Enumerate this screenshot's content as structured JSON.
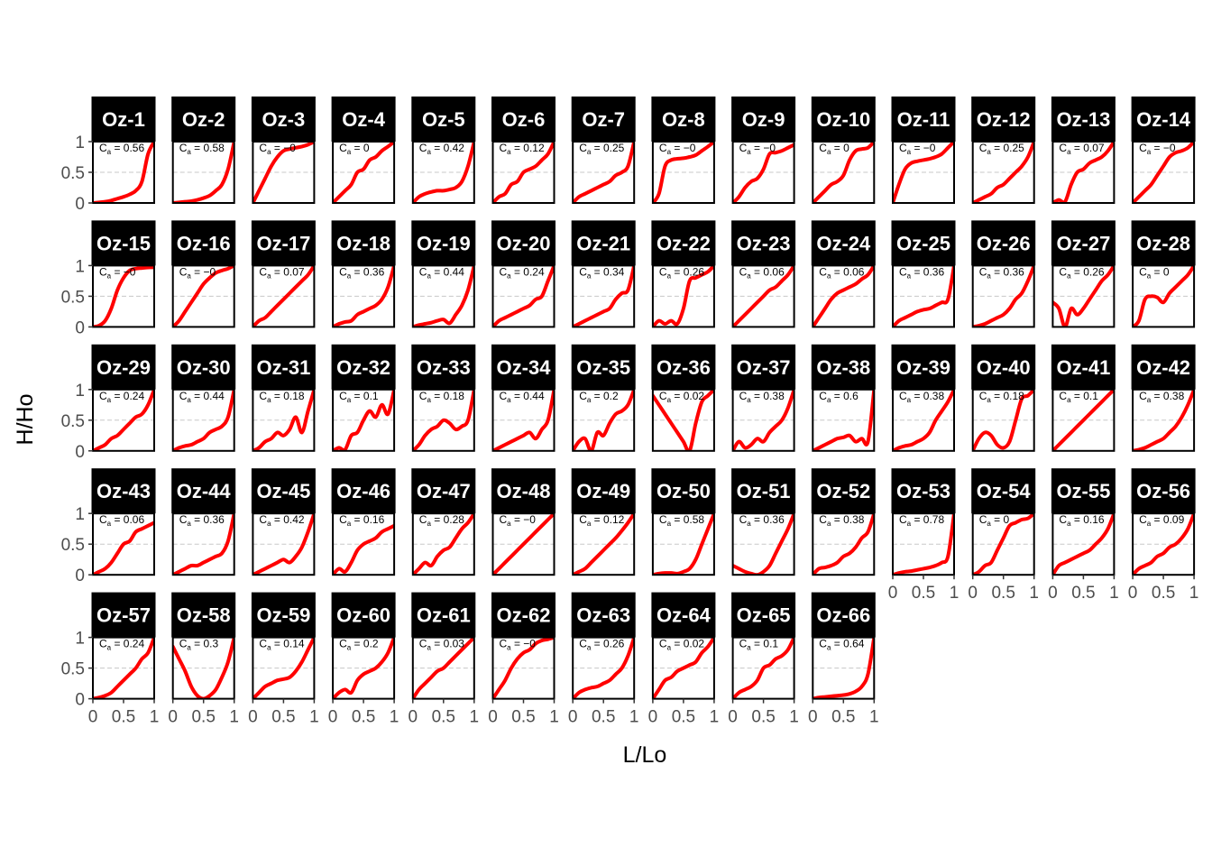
{
  "chart_data": {
    "type": "line",
    "layout": "facet_wrap",
    "ncol": 14,
    "xlabel": "L/Lo",
    "ylabel": "H/Ho",
    "xlim": [
      0,
      1
    ],
    "ylim": [
      0,
      1
    ],
    "x_ticks": [
      "0",
      "0.5",
      "1"
    ],
    "y_ticks": [
      "0",
      "0.5",
      "1"
    ],
    "reference_line": {
      "y": 0.5,
      "style": "dashed",
      "color": "#c8c8c8"
    },
    "line_color": "#ff0000",
    "strip_fill": "#000000",
    "strip_text_color": "#ffffff",
    "x": [
      0,
      0.1,
      0.2,
      0.3,
      0.4,
      0.5,
      0.6,
      0.7,
      0.8,
      0.9,
      1.0
    ],
    "panels": [
      {
        "name": "Oz-1",
        "ca": "0.56",
        "values": [
          0,
          0.01,
          0.02,
          0.04,
          0.07,
          0.1,
          0.14,
          0.2,
          0.35,
          0.8,
          1.0
        ]
      },
      {
        "name": "Oz-2",
        "ca": "0.58",
        "values": [
          0,
          0.01,
          0.02,
          0.03,
          0.05,
          0.08,
          0.12,
          0.2,
          0.3,
          0.55,
          1.0
        ]
      },
      {
        "name": "Oz-3",
        "ca": "−0",
        "values": [
          0,
          0.2,
          0.4,
          0.6,
          0.75,
          0.85,
          0.88,
          0.9,
          0.92,
          0.95,
          1.0
        ]
      },
      {
        "name": "Oz-4",
        "ca": "0",
        "values": [
          0,
          0.1,
          0.2,
          0.3,
          0.5,
          0.55,
          0.7,
          0.75,
          0.85,
          0.92,
          1.0
        ]
      },
      {
        "name": "Oz-5",
        "ca": "0.42",
        "values": [
          0,
          0.1,
          0.15,
          0.18,
          0.2,
          0.2,
          0.22,
          0.25,
          0.35,
          0.6,
          1.0
        ]
      },
      {
        "name": "Oz-6",
        "ca": "0.12",
        "values": [
          0,
          0.1,
          0.15,
          0.3,
          0.35,
          0.5,
          0.55,
          0.6,
          0.7,
          0.8,
          1.0
        ]
      },
      {
        "name": "Oz-7",
        "ca": "0.25",
        "values": [
          0,
          0.1,
          0.15,
          0.2,
          0.25,
          0.3,
          0.35,
          0.45,
          0.5,
          0.6,
          1.0
        ]
      },
      {
        "name": "Oz-8",
        "ca": "−0",
        "values": [
          0,
          0.15,
          0.6,
          0.7,
          0.72,
          0.73,
          0.75,
          0.78,
          0.85,
          0.92,
          1.0
        ]
      },
      {
        "name": "Oz-9",
        "ca": "−0",
        "values": [
          0,
          0.1,
          0.25,
          0.35,
          0.4,
          0.55,
          0.8,
          0.82,
          0.85,
          0.9,
          0.95
        ]
      },
      {
        "name": "Oz-10",
        "ca": "0",
        "values": [
          0,
          0.1,
          0.2,
          0.3,
          0.35,
          0.45,
          0.7,
          0.85,
          0.88,
          0.9,
          1.0
        ]
      },
      {
        "name": "Oz-11",
        "ca": "−0",
        "values": [
          0,
          0.3,
          0.55,
          0.65,
          0.68,
          0.7,
          0.72,
          0.75,
          0.8,
          0.9,
          1.0
        ]
      },
      {
        "name": "Oz-12",
        "ca": "0.25",
        "values": [
          0,
          0.05,
          0.1,
          0.15,
          0.25,
          0.3,
          0.4,
          0.5,
          0.6,
          0.75,
          1.0
        ]
      },
      {
        "name": "Oz-13",
        "ca": "0.07",
        "values": [
          0,
          0.05,
          0.02,
          0.3,
          0.5,
          0.55,
          0.65,
          0.7,
          0.75,
          0.85,
          1.0
        ]
      },
      {
        "name": "Oz-14",
        "ca": "−0",
        "values": [
          0,
          0.1,
          0.2,
          0.3,
          0.45,
          0.6,
          0.75,
          0.82,
          0.85,
          0.9,
          1.0
        ]
      },
      {
        "name": "Oz-15",
        "ca": "−0",
        "values": [
          0,
          0.02,
          0.1,
          0.3,
          0.6,
          0.8,
          0.92,
          0.95,
          0.96,
          0.97,
          0.97
        ]
      },
      {
        "name": "Oz-16",
        "ca": "−0",
        "values": [
          0,
          0.1,
          0.25,
          0.4,
          0.55,
          0.7,
          0.8,
          0.88,
          0.92,
          0.95,
          1.0
        ]
      },
      {
        "name": "Oz-17",
        "ca": "0.07",
        "values": [
          0,
          0.1,
          0.15,
          0.25,
          0.35,
          0.45,
          0.55,
          0.65,
          0.75,
          0.85,
          1.0
        ]
      },
      {
        "name": "Oz-18",
        "ca": "0.36",
        "values": [
          0,
          0.05,
          0.08,
          0.1,
          0.2,
          0.25,
          0.3,
          0.35,
          0.45,
          0.65,
          1.0
        ]
      },
      {
        "name": "Oz-19",
        "ca": "0.44",
        "values": [
          0,
          0.03,
          0.05,
          0.07,
          0.1,
          0.12,
          0.06,
          0.2,
          0.35,
          0.6,
          1.0
        ]
      },
      {
        "name": "Oz-20",
        "ca": "0.24",
        "values": [
          0,
          0.1,
          0.15,
          0.2,
          0.25,
          0.3,
          0.35,
          0.45,
          0.5,
          0.75,
          1.0
        ]
      },
      {
        "name": "Oz-21",
        "ca": "0.34",
        "values": [
          0,
          0.05,
          0.1,
          0.15,
          0.2,
          0.25,
          0.3,
          0.45,
          0.55,
          0.6,
          1.0
        ]
      },
      {
        "name": "Oz-22",
        "ca": "0.26",
        "values": [
          0,
          0.1,
          0.05,
          0.1,
          0.05,
          0.3,
          0.75,
          0.8,
          0.85,
          0.9,
          1.0
        ]
      },
      {
        "name": "Oz-23",
        "ca": "0.06",
        "values": [
          0,
          0.1,
          0.2,
          0.3,
          0.4,
          0.5,
          0.6,
          0.65,
          0.75,
          0.85,
          1.0
        ]
      },
      {
        "name": "Oz-24",
        "ca": "0.06",
        "values": [
          0,
          0.15,
          0.3,
          0.45,
          0.55,
          0.6,
          0.65,
          0.7,
          0.78,
          0.85,
          1.0
        ]
      },
      {
        "name": "Oz-25",
        "ca": "0.36",
        "values": [
          0,
          0.1,
          0.15,
          0.2,
          0.25,
          0.28,
          0.3,
          0.35,
          0.4,
          0.45,
          1.0
        ]
      },
      {
        "name": "Oz-26",
        "ca": "0.36",
        "values": [
          0,
          0.02,
          0.05,
          0.1,
          0.15,
          0.2,
          0.3,
          0.45,
          0.55,
          0.75,
          1.0
        ]
      },
      {
        "name": "Oz-27",
        "ca": "0.26",
        "values": [
          0.4,
          0.3,
          0,
          0.3,
          0.2,
          0.3,
          0.45,
          0.6,
          0.75,
          0.85,
          1.0
        ]
      },
      {
        "name": "Oz-28",
        "ca": "0",
        "values": [
          0,
          0.1,
          0.45,
          0.5,
          0.48,
          0.4,
          0.55,
          0.65,
          0.75,
          0.85,
          1.0
        ]
      },
      {
        "name": "Oz-29",
        "ca": "0.24",
        "values": [
          0,
          0.05,
          0.1,
          0.2,
          0.25,
          0.35,
          0.45,
          0.55,
          0.6,
          0.75,
          1.0
        ]
      },
      {
        "name": "Oz-30",
        "ca": "0.44",
        "values": [
          0,
          0.05,
          0.08,
          0.1,
          0.15,
          0.2,
          0.3,
          0.35,
          0.4,
          0.55,
          1.0
        ]
      },
      {
        "name": "Oz-31",
        "ca": "0.18",
        "values": [
          0,
          0.05,
          0.15,
          0.2,
          0.3,
          0.25,
          0.35,
          0.55,
          0.3,
          0.65,
          1.0
        ]
      },
      {
        "name": "Oz-32",
        "ca": "0.1",
        "values": [
          0,
          0.05,
          0.02,
          0.25,
          0.3,
          0.5,
          0.65,
          0.55,
          0.75,
          0.6,
          1.0
        ]
      },
      {
        "name": "Oz-33",
        "ca": "0.18",
        "values": [
          0,
          0.1,
          0.25,
          0.35,
          0.4,
          0.5,
          0.45,
          0.35,
          0.4,
          0.5,
          1.0
        ]
      },
      {
        "name": "Oz-34",
        "ca": "0.44",
        "values": [
          0,
          0.05,
          0.1,
          0.15,
          0.2,
          0.25,
          0.3,
          0.2,
          0.35,
          0.5,
          1.0
        ]
      },
      {
        "name": "Oz-35",
        "ca": "0.2",
        "values": [
          0,
          0.15,
          0.2,
          0.0,
          0.3,
          0.25,
          0.45,
          0.6,
          0.65,
          0.75,
          1.0
        ]
      },
      {
        "name": "Oz-36",
        "ca": "0.02",
        "values": [
          0.9,
          0.75,
          0.6,
          0.45,
          0.3,
          0.15,
          0,
          0.45,
          0.8,
          0.9,
          1.0
        ]
      },
      {
        "name": "Oz-37",
        "ca": "0.38",
        "values": [
          0,
          0.15,
          0.05,
          0.1,
          0.2,
          0.15,
          0.3,
          0.4,
          0.5,
          0.7,
          1.0
        ]
      },
      {
        "name": "Oz-38",
        "ca": "0.6",
        "values": [
          0,
          0.05,
          0.1,
          0.15,
          0.2,
          0.22,
          0.25,
          0.15,
          0.2,
          0.15,
          1.0
        ]
      },
      {
        "name": "Oz-39",
        "ca": "0.38",
        "values": [
          0,
          0.05,
          0.08,
          0.1,
          0.15,
          0.2,
          0.3,
          0.5,
          0.65,
          0.8,
          1.0
        ]
      },
      {
        "name": "Oz-40",
        "ca": "0.18",
        "values": [
          0,
          0.2,
          0.3,
          0.25,
          0.1,
          0.05,
          0.15,
          0.5,
          0.85,
          0.9,
          1.0
        ]
      },
      {
        "name": "Oz-41",
        "ca": "0.1",
        "values": [
          0,
          0.1,
          0.2,
          0.3,
          0.4,
          0.5,
          0.6,
          0.7,
          0.8,
          0.9,
          1.0
        ]
      },
      {
        "name": "Oz-42",
        "ca": "0.38",
        "values": [
          0,
          0.02,
          0.05,
          0.1,
          0.15,
          0.2,
          0.3,
          0.4,
          0.55,
          0.75,
          1.0
        ]
      },
      {
        "name": "Oz-43",
        "ca": "0.06",
        "values": [
          0,
          0.05,
          0.1,
          0.2,
          0.35,
          0.5,
          0.55,
          0.7,
          0.75,
          0.8,
          0.85
        ]
      },
      {
        "name": "Oz-44",
        "ca": "0.36",
        "values": [
          0,
          0.05,
          0.1,
          0.15,
          0.15,
          0.2,
          0.25,
          0.3,
          0.35,
          0.55,
          1.0
        ]
      },
      {
        "name": "Oz-45",
        "ca": "0.42",
        "values": [
          0,
          0.05,
          0.1,
          0.15,
          0.2,
          0.25,
          0.2,
          0.3,
          0.45,
          0.7,
          1.0
        ]
      },
      {
        "name": "Oz-46",
        "ca": "0.16",
        "values": [
          0,
          0.1,
          0.05,
          0.2,
          0.4,
          0.5,
          0.55,
          0.6,
          0.7,
          0.75,
          0.8
        ]
      },
      {
        "name": "Oz-47",
        "ca": "0.28",
        "values": [
          0,
          0.1,
          0.2,
          0.15,
          0.3,
          0.4,
          0.45,
          0.6,
          0.75,
          0.85,
          1.0
        ]
      },
      {
        "name": "Oz-48",
        "ca": "−0",
        "values": [
          0,
          0.1,
          0.2,
          0.3,
          0.4,
          0.5,
          0.6,
          0.7,
          0.8,
          0.9,
          1.0
        ]
      },
      {
        "name": "Oz-49",
        "ca": "0.12",
        "values": [
          0,
          0.05,
          0.1,
          0.2,
          0.3,
          0.4,
          0.5,
          0.6,
          0.72,
          0.85,
          1.0
        ]
      },
      {
        "name": "Oz-50",
        "ca": "0.58",
        "values": [
          0,
          0.02,
          0.03,
          0.03,
          0.02,
          0.05,
          0.1,
          0.25,
          0.5,
          0.75,
          1.0
        ]
      },
      {
        "name": "Oz-51",
        "ca": "0.36",
        "values": [
          0.15,
          0.1,
          0.05,
          0.02,
          0.0,
          0.05,
          0.15,
          0.35,
          0.55,
          0.75,
          1.0
        ]
      },
      {
        "name": "Oz-52",
        "ca": "0.38",
        "values": [
          0,
          0.1,
          0.12,
          0.15,
          0.2,
          0.3,
          0.35,
          0.45,
          0.6,
          0.7,
          1.0
        ]
      },
      {
        "name": "Oz-53",
        "ca": "0.78",
        "values": [
          0,
          0.03,
          0.05,
          0.06,
          0.08,
          0.1,
          0.12,
          0.15,
          0.2,
          0.3,
          1.0
        ]
      },
      {
        "name": "Oz-54",
        "ca": "0",
        "values": [
          0,
          0.05,
          0.15,
          0.2,
          0.4,
          0.6,
          0.8,
          0.85,
          0.9,
          0.92,
          1.0
        ]
      },
      {
        "name": "Oz-55",
        "ca": "0.16",
        "values": [
          0,
          0.15,
          0.2,
          0.25,
          0.3,
          0.35,
          0.4,
          0.5,
          0.6,
          0.75,
          1.0
        ]
      },
      {
        "name": "Oz-56",
        "ca": "0.09",
        "values": [
          0,
          0.1,
          0.15,
          0.2,
          0.3,
          0.35,
          0.45,
          0.5,
          0.6,
          0.75,
          1.0
        ]
      },
      {
        "name": "Oz-57",
        "ca": "0.24",
        "values": [
          0,
          0.02,
          0.05,
          0.1,
          0.2,
          0.3,
          0.4,
          0.5,
          0.65,
          0.75,
          1.0
        ]
      },
      {
        "name": "Oz-58",
        "ca": "0.3",
        "values": [
          0.85,
          0.65,
          0.45,
          0.2,
          0.05,
          0.0,
          0.05,
          0.15,
          0.35,
          0.6,
          1.0
        ]
      },
      {
        "name": "Oz-59",
        "ca": "0.14",
        "values": [
          0,
          0.1,
          0.2,
          0.25,
          0.3,
          0.32,
          0.35,
          0.45,
          0.6,
          0.8,
          1.0
        ]
      },
      {
        "name": "Oz-60",
        "ca": "0.2",
        "values": [
          0,
          0.1,
          0.15,
          0.1,
          0.3,
          0.4,
          0.45,
          0.5,
          0.6,
          0.75,
          1.0
        ]
      },
      {
        "name": "Oz-61",
        "ca": "0.03",
        "values": [
          0,
          0.15,
          0.25,
          0.35,
          0.45,
          0.5,
          0.6,
          0.7,
          0.8,
          0.9,
          1.0
        ]
      },
      {
        "name": "Oz-62",
        "ca": "−0",
        "values": [
          0,
          0.15,
          0.3,
          0.5,
          0.65,
          0.75,
          0.8,
          0.9,
          0.95,
          0.97,
          1.0
        ]
      },
      {
        "name": "Oz-63",
        "ca": "0.26",
        "values": [
          0,
          0.1,
          0.15,
          0.18,
          0.2,
          0.25,
          0.3,
          0.4,
          0.5,
          0.7,
          1.0
        ]
      },
      {
        "name": "Oz-64",
        "ca": "0.02",
        "values": [
          0,
          0.15,
          0.3,
          0.35,
          0.45,
          0.5,
          0.55,
          0.6,
          0.75,
          0.85,
          1.0
        ]
      },
      {
        "name": "Oz-65",
        "ca": "0.1",
        "values": [
          0,
          0.1,
          0.15,
          0.2,
          0.3,
          0.5,
          0.55,
          0.65,
          0.7,
          0.8,
          1.0
        ]
      },
      {
        "name": "Oz-66",
        "ca": "0.64",
        "values": [
          0,
          0.02,
          0.03,
          0.04,
          0.05,
          0.06,
          0.08,
          0.12,
          0.2,
          0.4,
          1.0
        ]
      }
    ]
  }
}
